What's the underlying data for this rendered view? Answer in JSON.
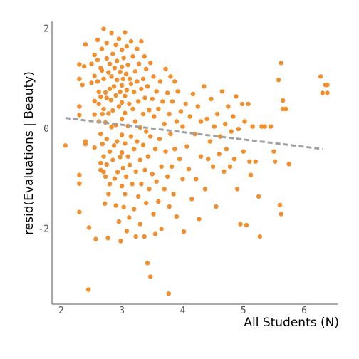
{
  "chart_data": {
    "type": "scatter",
    "xlabel": "All Students (N)",
    "ylabel": "resid(Evaluations | Beauty)",
    "xlim": [
      1.85,
      6.55
    ],
    "ylim": [
      -3.5,
      2.15
    ],
    "xticks": [
      2,
      3,
      4,
      5,
      6
    ],
    "xtick_labels": [
      "2",
      "3",
      "4",
      "5",
      "6"
    ],
    "yticks": [
      -2,
      0,
      2
    ],
    "ytick_labels": [
      "-2",
      "0",
      "2"
    ],
    "grid": false,
    "colors": {
      "points": "#f28e2b",
      "trend": "#a0a0a0",
      "axis": "#555555"
    },
    "trend_line": {
      "style": "dashed",
      "x": [
        2.07,
        6.3
      ],
      "y": [
        0.22,
        -0.4
      ]
    },
    "points": [
      [
        2.07,
        -0.33
      ],
      [
        2.3,
        -1.66
      ],
      [
        2.3,
        -0.92
      ],
      [
        2.3,
        -1.09
      ],
      [
        2.3,
        0.28
      ],
      [
        2.3,
        0.45
      ],
      [
        2.3,
        1.0
      ],
      [
        2.3,
        1.29
      ],
      [
        2.35,
        0.88
      ],
      [
        2.38,
        1.25
      ],
      [
        2.4,
        1.69
      ],
      [
        2.4,
        -0.25
      ],
      [
        2.4,
        -0.3
      ],
      [
        2.45,
        -3.21
      ],
      [
        2.46,
        -1.97
      ],
      [
        2.5,
        1.3
      ],
      [
        2.5,
        0.92
      ],
      [
        2.55,
        1.48
      ],
      [
        2.55,
        1.06
      ],
      [
        2.55,
        0.56
      ],
      [
        2.55,
        0.29
      ],
      [
        2.55,
        -0.37
      ],
      [
        2.57,
        -2.2
      ],
      [
        2.6,
        1.78
      ],
      [
        2.6,
        1.38
      ],
      [
        2.6,
        0.95
      ],
      [
        2.62,
        0.74
      ],
      [
        2.62,
        0.5
      ],
      [
        2.62,
        0.15
      ],
      [
        2.65,
        1.22
      ],
      [
        2.65,
        0.64
      ],
      [
        2.65,
        -0.1
      ],
      [
        2.65,
        -0.68
      ],
      [
        2.65,
        -0.82
      ],
      [
        2.67,
        1.6
      ],
      [
        2.67,
        1.17
      ],
      [
        2.68,
        0.3
      ],
      [
        2.68,
        -0.3
      ],
      [
        2.7,
        2.0
      ],
      [
        2.7,
        1.0
      ],
      [
        2.7,
        0.4
      ],
      [
        2.7,
        -0.55
      ],
      [
        2.7,
        -0.86
      ],
      [
        2.72,
        -1.49
      ],
      [
        2.73,
        0.73
      ],
      [
        2.73,
        0.13
      ],
      [
        2.73,
        -0.95
      ],
      [
        2.75,
        1.72
      ],
      [
        2.75,
        1.41
      ],
      [
        2.75,
        0.62
      ],
      [
        2.75,
        -0.2
      ],
      [
        2.75,
        -0.71
      ],
      [
        2.77,
        -2.18
      ],
      [
        2.78,
        1.13
      ],
      [
        2.78,
        0.31
      ],
      [
        2.78,
        -1.3
      ],
      [
        2.8,
        1.3
      ],
      [
        2.8,
        0.8
      ],
      [
        2.8,
        -0.45
      ],
      [
        2.8,
        -1.1
      ],
      [
        2.82,
        0.58
      ],
      [
        2.83,
        1.92
      ],
      [
        2.83,
        1.05
      ],
      [
        2.83,
        0.04
      ],
      [
        2.85,
        1.5
      ],
      [
        2.85,
        0.37
      ],
      [
        2.85,
        -0.62
      ],
      [
        2.87,
        0.85
      ],
      [
        2.87,
        -0.33
      ],
      [
        2.88,
        1.22
      ],
      [
        2.88,
        -0.99
      ],
      [
        2.9,
        1.68
      ],
      [
        2.9,
        0.67
      ],
      [
        2.9,
        0.08
      ],
      [
        2.9,
        -1.53
      ],
      [
        2.92,
        1.36
      ],
      [
        2.92,
        0.98
      ],
      [
        2.92,
        -0.25
      ],
      [
        2.93,
        -0.86
      ],
      [
        2.95,
        1.8
      ],
      [
        2.95,
        0.45
      ],
      [
        2.95,
        -1.85
      ],
      [
        2.97,
        1.14
      ],
      [
        2.97,
        0.74
      ],
      [
        2.97,
        -0.56
      ],
      [
        2.98,
        -2.24
      ],
      [
        3.0,
        1.58
      ],
      [
        3.0,
        1.24
      ],
      [
        3.0,
        0.87
      ],
      [
        3.0,
        0.53
      ],
      [
        3.0,
        0.2
      ],
      [
        3.0,
        -0.12
      ],
      [
        3.0,
        -0.47
      ],
      [
        3.0,
        -1.14
      ],
      [
        3.02,
        1.0
      ],
      [
        3.02,
        -0.78
      ],
      [
        3.03,
        1.42
      ],
      [
        3.03,
        -1.56
      ],
      [
        3.05,
        1.93
      ],
      [
        3.05,
        0.66
      ],
      [
        3.05,
        0.32
      ],
      [
        3.05,
        -0.29
      ],
      [
        3.05,
        -1.3
      ],
      [
        3.07,
        1.1
      ],
      [
        3.07,
        -0.95
      ],
      [
        3.08,
        1.65
      ],
      [
        3.08,
        0.78
      ],
      [
        3.08,
        -2.04
      ],
      [
        3.1,
        1.28
      ],
      [
        3.1,
        0.06
      ],
      [
        3.1,
        -0.55
      ],
      [
        3.12,
        0.5
      ],
      [
        3.12,
        -1.77
      ],
      [
        3.13,
        1.0
      ],
      [
        3.13,
        -0.72
      ],
      [
        3.15,
        1.75
      ],
      [
        3.15,
        0.9
      ],
      [
        3.15,
        -0.15
      ],
      [
        3.17,
        -1.1
      ],
      [
        3.18,
        1.45
      ],
      [
        3.18,
        0.4
      ],
      [
        3.2,
        0.74
      ],
      [
        3.2,
        -0.4
      ],
      [
        3.2,
        -1.6
      ],
      [
        3.22,
        1.15
      ],
      [
        3.22,
        0.15
      ],
      [
        3.23,
        -0.85
      ],
      [
        3.23,
        -2.15
      ],
      [
        3.25,
        1.6
      ],
      [
        3.25,
        0.95
      ],
      [
        3.25,
        -0.25
      ],
      [
        3.27,
        0.55
      ],
      [
        3.27,
        -1.35
      ],
      [
        3.28,
        1.3
      ],
      [
        3.3,
        0.03
      ],
      [
        3.3,
        -0.62
      ],
      [
        3.3,
        -1.9
      ],
      [
        3.32,
        1.75
      ],
      [
        3.32,
        0.8
      ],
      [
        3.32,
        -1.1
      ],
      [
        3.35,
        1.0
      ],
      [
        3.35,
        0.3
      ],
      [
        3.35,
        -0.32
      ],
      [
        3.37,
        1.45
      ],
      [
        3.37,
        -2.15
      ],
      [
        3.38,
        0.62
      ],
      [
        3.38,
        -0.82
      ],
      [
        3.4,
        1.2
      ],
      [
        3.4,
        -0.05
      ],
      [
        3.4,
        -1.48
      ],
      [
        3.42,
        0.85
      ],
      [
        3.42,
        -2.68
      ],
      [
        3.43,
        -0.55
      ],
      [
        3.45,
        0.38
      ],
      [
        3.45,
        -1.2
      ],
      [
        3.47,
        1.32
      ],
      [
        3.47,
        -0.15
      ],
      [
        3.47,
        -2.95
      ],
      [
        3.5,
        0.6
      ],
      [
        3.5,
        -0.9
      ],
      [
        3.52,
        1.05
      ],
      [
        3.52,
        -1.7
      ],
      [
        3.53,
        0.25
      ],
      [
        3.55,
        -0.4
      ],
      [
        3.55,
        -2.1
      ],
      [
        3.57,
        0.75
      ],
      [
        3.57,
        -1.05
      ],
      [
        3.6,
        0.4
      ],
      [
        3.6,
        -1.45
      ],
      [
        3.62,
        -0.2
      ],
      [
        3.63,
        0.95
      ],
      [
        3.65,
        -0.75
      ],
      [
        3.65,
        -2.0
      ],
      [
        3.67,
        0.55
      ],
      [
        3.7,
        0.1
      ],
      [
        3.7,
        -1.2
      ],
      [
        3.72,
        1.2
      ],
      [
        3.72,
        -0.45
      ],
      [
        3.75,
        0.72
      ],
      [
        3.75,
        -0.95
      ],
      [
        3.77,
        -3.29
      ],
      [
        3.78,
        0.3
      ],
      [
        3.78,
        -1.55
      ],
      [
        3.8,
        1.05
      ],
      [
        3.8,
        -0.1
      ],
      [
        3.82,
        -0.75
      ],
      [
        3.83,
        0.55
      ],
      [
        3.85,
        -1.3
      ],
      [
        3.87,
        0.95
      ],
      [
        3.87,
        -0.4
      ],
      [
        3.9,
        0.15
      ],
      [
        3.9,
        -1.75
      ],
      [
        3.92,
        0.75
      ],
      [
        3.95,
        -0.6
      ],
      [
        3.97,
        0.35
      ],
      [
        4.0,
        -1.0
      ],
      [
        4.0,
        0.05
      ],
      [
        4.02,
        -2.05
      ],
      [
        4.05,
        0.5
      ],
      [
        4.07,
        -0.35
      ],
      [
        4.1,
        -0.8
      ],
      [
        4.12,
        0.25
      ],
      [
        4.15,
        -1.4
      ],
      [
        4.17,
        0.7
      ],
      [
        4.2,
        -0.1
      ],
      [
        4.22,
        -1.0
      ],
      [
        4.25,
        0.45
      ],
      [
        4.27,
        -1.8
      ],
      [
        4.3,
        0.15
      ],
      [
        4.3,
        -0.55
      ],
      [
        4.35,
        0.85
      ],
      [
        4.37,
        -1.2
      ],
      [
        4.4,
        0.2
      ],
      [
        4.42,
        -0.6
      ],
      [
        4.45,
        -0.25
      ],
      [
        4.47,
        0.6
      ],
      [
        4.5,
        -0.75
      ],
      [
        4.52,
        0.05
      ],
      [
        4.55,
        -1.55
      ],
      [
        4.57,
        0.3
      ],
      [
        4.6,
        -0.5
      ],
      [
        4.62,
        -0.15
      ],
      [
        4.65,
        0.75
      ],
      [
        4.68,
        -0.85
      ],
      [
        4.7,
        0.1
      ],
      [
        4.72,
        -0.4
      ],
      [
        4.75,
        0.45
      ],
      [
        4.78,
        -0.75
      ],
      [
        4.8,
        -0.05
      ],
      [
        4.83,
        0.25
      ],
      [
        4.85,
        -0.6
      ],
      [
        4.88,
        0.65
      ],
      [
        4.9,
        -1.2
      ],
      [
        4.92,
        0.0
      ],
      [
        4.95,
        -1.9
      ],
      [
        4.98,
        0.5
      ],
      [
        5.0,
        -0.45
      ],
      [
        5.02,
        0.15
      ],
      [
        5.05,
        -1.92
      ],
      [
        5.08,
        0.5
      ],
      [
        5.1,
        -0.65
      ],
      [
        5.12,
        -0.92
      ],
      [
        5.15,
        0.05
      ],
      [
        5.2,
        -0.65
      ],
      [
        5.25,
        -1.35
      ],
      [
        5.27,
        -2.15
      ],
      [
        5.3,
        0.05
      ],
      [
        5.35,
        0.05
      ],
      [
        5.45,
        0.05
      ],
      [
        5.5,
        -0.45
      ],
      [
        5.52,
        -0.65
      ],
      [
        5.58,
        0.98
      ],
      [
        5.6,
        -1.52
      ],
      [
        5.62,
        1.32
      ],
      [
        5.62,
        -1.7
      ],
      [
        5.65,
        0.57
      ],
      [
        5.65,
        0.4
      ],
      [
        5.7,
        0.4
      ],
      [
        5.75,
        -0.7
      ],
      [
        6.27,
        1.05
      ],
      [
        6.3,
        0.72
      ],
      [
        6.35,
        0.88
      ],
      [
        6.38,
        0.72
      ],
      [
        6.38,
        0.88
      ]
    ]
  }
}
